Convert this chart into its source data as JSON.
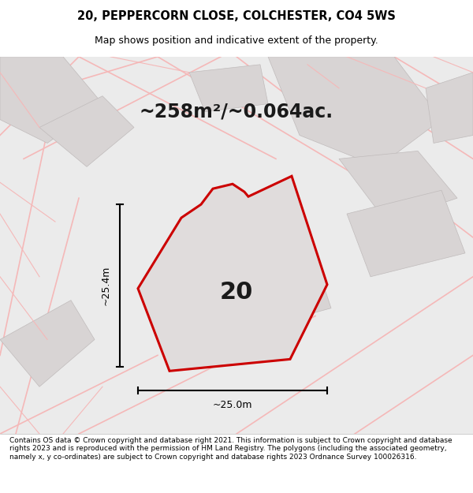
{
  "title_line1": "20, PEPPERCORN CLOSE, COLCHESTER, CO4 5WS",
  "title_line2": "Map shows position and indicative extent of the property.",
  "area_text": "~258m²/~0.064ac.",
  "label_number": "20",
  "dim_height": "~25.4m",
  "dim_width": "~25.0m",
  "footer_text": "Contains OS data © Crown copyright and database right 2021. This information is subject to Crown copyright and database rights 2023 and is reproduced with the permission of HM Land Registry. The polygons (including the associated geometry, namely x, y co-ordinates) are subject to Crown copyright and database rights 2023 Ordnance Survey 100026316.",
  "bg_color": "#f0eeee",
  "map_bg": "#e8e6e6",
  "plot_fill": "#dcdcdc",
  "road_color": "#f5b8b8",
  "highlight_color": "#cc0000",
  "title_bg": "#ffffff",
  "footer_bg": "#ffffff"
}
